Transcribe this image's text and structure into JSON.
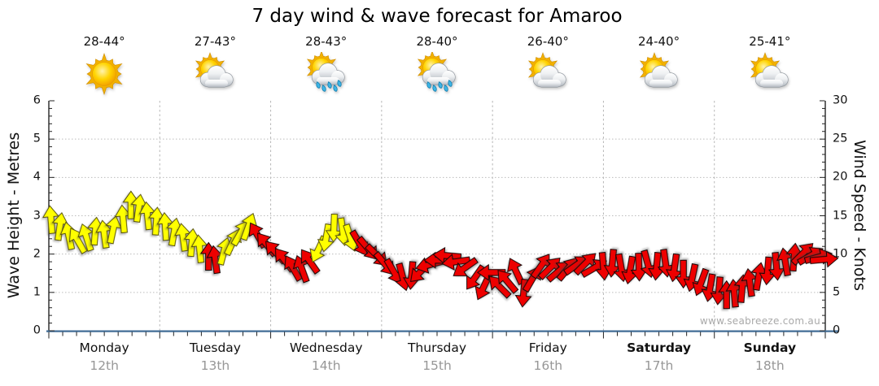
{
  "title": "7 day wind & wave forecast for Amaroo",
  "watermark": "www.seabreeze.com.au",
  "days": [
    {
      "name": "Monday",
      "date": "12th",
      "temp": "28-44°",
      "icon": "sunny",
      "weekend": false
    },
    {
      "name": "Tuesday",
      "date": "13th",
      "temp": "27-43°",
      "icon": "partly-cloudy",
      "weekend": false
    },
    {
      "name": "Wednesday",
      "date": "14th",
      "temp": "28-43°",
      "icon": "showers",
      "weekend": false
    },
    {
      "name": "Thursday",
      "date": "15th",
      "temp": "28-40°",
      "icon": "showers",
      "weekend": false
    },
    {
      "name": "Friday",
      "date": "16th",
      "temp": "26-40°",
      "icon": "partly-cloudy",
      "weekend": false
    },
    {
      "name": "Saturday",
      "date": "17th",
      "temp": "24-40°",
      "icon": "partly-cloudy",
      "weekend": true
    },
    {
      "name": "Sunday",
      "date": "18th",
      "temp": "25-41°",
      "icon": "partly-cloudy",
      "weekend": true
    }
  ],
  "chart_data": {
    "type": "wind-arrows",
    "title": "7 day wind & wave forecast for Amaroo",
    "left_axis": {
      "label": "Wave Height - Metres",
      "min": 0,
      "max": 6,
      "major_step": 1,
      "minor_step": 0.2,
      "ticks": [
        0,
        1,
        2,
        3,
        4,
        5,
        6
      ]
    },
    "right_axis": {
      "label": "Wind Speed - Knots",
      "min": 0,
      "max": 30,
      "major_step": 5,
      "minor_step": 1,
      "ticks": [
        0,
        5,
        10,
        15,
        20,
        25,
        30
      ]
    },
    "x_axis": {
      "categories": [
        "Monday",
        "Tuesday",
        "Wednesday",
        "Thursday",
        "Friday",
        "Saturday",
        "Sunday"
      ],
      "minor_ticks_per_day": 8,
      "grid": "dashed-day-boundaries"
    },
    "colors": {
      "light_wind": "#ffff00",
      "strong_wind": "#ee0000",
      "outline_light": "#55500a",
      "outline_strong": "#150505",
      "grid": "#b8b8b8",
      "axis_bottom": "#3e6a94"
    },
    "legend_note": "arrow vertical position = wind speed in knots; arrow rotation = wind direction (0 = from south, pointing north); yellow = lighter wind, red = stronger wind",
    "arrows": [
      [
        0.02,
        14.5,
        -5,
        "y"
      ],
      [
        0.1,
        13.6,
        8,
        "y"
      ],
      [
        0.18,
        12.4,
        -12,
        "y"
      ],
      [
        0.26,
        11.8,
        -30,
        "y"
      ],
      [
        0.34,
        12.2,
        -18,
        "y"
      ],
      [
        0.42,
        13.0,
        5,
        "y"
      ],
      [
        0.5,
        12.6,
        -8,
        "y"
      ],
      [
        0.58,
        13.2,
        12,
        "y"
      ],
      [
        0.67,
        14.6,
        -5,
        "y"
      ],
      [
        0.74,
        16.4,
        0,
        "y"
      ],
      [
        0.81,
        16.0,
        8,
        "y"
      ],
      [
        0.89,
        15.0,
        -6,
        "y"
      ],
      [
        0.97,
        14.3,
        4,
        "y"
      ],
      [
        1.05,
        13.6,
        -4,
        "y"
      ],
      [
        1.13,
        12.9,
        10,
        "y"
      ],
      [
        1.21,
        12.2,
        -8,
        "y"
      ],
      [
        1.29,
        11.5,
        5,
        "y"
      ],
      [
        1.36,
        10.7,
        -6,
        "y"
      ],
      [
        1.44,
        9.7,
        0,
        "r"
      ],
      [
        1.5,
        9.3,
        -8,
        "r"
      ],
      [
        1.58,
        10.4,
        15,
        "y"
      ],
      [
        1.66,
        11.6,
        25,
        "y"
      ],
      [
        1.73,
        12.8,
        30,
        "y"
      ],
      [
        1.8,
        13.6,
        20,
        "y"
      ],
      [
        1.88,
        12.5,
        -30,
        "r"
      ],
      [
        1.96,
        11.3,
        -38,
        "r"
      ],
      [
        2.04,
        10.3,
        -42,
        "r"
      ],
      [
        2.12,
        9.3,
        -38,
        "r"
      ],
      [
        2.2,
        8.2,
        -30,
        "r"
      ],
      [
        2.28,
        8.1,
        -20,
        "r"
      ],
      [
        2.35,
        9.1,
        -35,
        "r"
      ],
      [
        2.43,
        10.6,
        205,
        "y"
      ],
      [
        2.5,
        12.1,
        190,
        "y"
      ],
      [
        2.57,
        13.4,
        182,
        "y"
      ],
      [
        2.65,
        12.9,
        172,
        "y"
      ],
      [
        2.72,
        12.1,
        162,
        "y"
      ],
      [
        2.8,
        11.4,
        150,
        "r"
      ],
      [
        2.88,
        10.7,
        140,
        "r"
      ],
      [
        2.96,
        9.8,
        135,
        "r"
      ],
      [
        3.03,
        8.7,
        140,
        "r"
      ],
      [
        3.11,
        7.7,
        150,
        "r"
      ],
      [
        3.19,
        7.0,
        165,
        "r"
      ],
      [
        3.27,
        7.2,
        185,
        "r"
      ],
      [
        3.35,
        7.7,
        225,
        "r"
      ],
      [
        3.43,
        8.6,
        255,
        "r"
      ],
      [
        3.51,
        9.2,
        270,
        "r"
      ],
      [
        3.59,
        9.8,
        275,
        "r"
      ],
      [
        3.67,
        9.0,
        262,
        "r"
      ],
      [
        3.75,
        8.2,
        235,
        "r"
      ],
      [
        3.84,
        6.9,
        215,
        "r"
      ],
      [
        3.92,
        5.7,
        205,
        "r"
      ],
      [
        3.99,
        7.6,
        270,
        "r"
      ],
      [
        4.06,
        5.8,
        315,
        "r"
      ],
      [
        4.13,
        6.5,
        320,
        "r"
      ],
      [
        4.21,
        7.8,
        335,
        "r"
      ],
      [
        4.28,
        4.9,
        185,
        "r"
      ],
      [
        4.36,
        6.8,
        30,
        "r"
      ],
      [
        4.44,
        8.5,
        35,
        "r"
      ],
      [
        4.52,
        8.2,
        45,
        "r"
      ],
      [
        4.6,
        7.8,
        50,
        "r"
      ],
      [
        4.68,
        8.1,
        40,
        "r"
      ],
      [
        4.76,
        8.6,
        55,
        "r"
      ],
      [
        4.84,
        8.8,
        45,
        "r"
      ],
      [
        4.92,
        8.2,
        60,
        "r"
      ],
      [
        5.0,
        8.4,
        175,
        "r"
      ],
      [
        5.08,
        8.8,
        185,
        "r"
      ],
      [
        5.16,
        8.2,
        170,
        "r"
      ],
      [
        5.24,
        7.9,
        190,
        "r"
      ],
      [
        5.32,
        8.3,
        178,
        "r"
      ],
      [
        5.4,
        8.7,
        165,
        "r"
      ],
      [
        5.48,
        8.4,
        185,
        "r"
      ],
      [
        5.56,
        8.8,
        172,
        "r"
      ],
      [
        5.64,
        8.2,
        188,
        "r"
      ],
      [
        5.72,
        7.4,
        180,
        "r"
      ],
      [
        5.8,
        6.9,
        192,
        "r"
      ],
      [
        5.88,
        6.3,
        200,
        "r"
      ],
      [
        5.96,
        5.6,
        190,
        "r"
      ],
      [
        6.04,
        5.2,
        185,
        "r"
      ],
      [
        6.11,
        4.7,
        0,
        "r"
      ],
      [
        6.18,
        4.9,
        -5,
        "r"
      ],
      [
        6.25,
        5.5,
        5,
        "r"
      ],
      [
        6.32,
        6.3,
        -8,
        "r"
      ],
      [
        6.4,
        7.1,
        10,
        "r"
      ],
      [
        6.48,
        7.8,
        185,
        "r"
      ],
      [
        6.56,
        8.4,
        175,
        "r"
      ],
      [
        6.64,
        9.0,
        -10,
        "r"
      ],
      [
        6.72,
        9.6,
        5,
        "r"
      ],
      [
        6.8,
        10.1,
        45,
        "r"
      ],
      [
        6.87,
        9.8,
        60,
        "r"
      ],
      [
        6.94,
        9.6,
        75,
        "r"
      ],
      [
        6.99,
        9.3,
        85,
        "r"
      ]
    ]
  }
}
